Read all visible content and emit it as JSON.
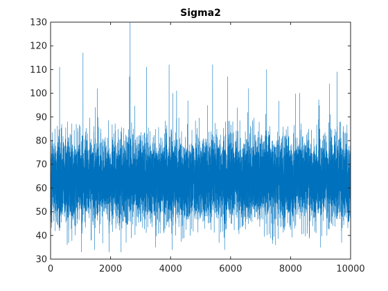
{
  "chart_data": {
    "type": "line",
    "title": "Sigma2",
    "xlabel": "",
    "ylabel": "",
    "xlim": [
      0,
      10000
    ],
    "ylim": [
      30,
      130
    ],
    "x_ticks": [
      0,
      2000,
      4000,
      6000,
      8000,
      10000
    ],
    "y_ticks": [
      30,
      40,
      50,
      60,
      70,
      80,
      90,
      100,
      110,
      120,
      130
    ],
    "x_tick_labels": [
      "0",
      "2000",
      "4000",
      "6000",
      "8000",
      "10000"
    ],
    "y_tick_labels": [
      "30",
      "40",
      "50",
      "60",
      "70",
      "80",
      "90",
      "100",
      "110",
      "120",
      "130"
    ],
    "grid": false,
    "series": [
      {
        "color": "#0072bd",
        "n_points": 10000,
        "typical_range": [
          45,
          80
        ],
        "median": 62,
        "peaks": [
          {
            "x": 2650,
            "y": 130
          },
          {
            "x": 1080,
            "y": 117
          },
          {
            "x": 300,
            "y": 111
          },
          {
            "x": 3200,
            "y": 111
          },
          {
            "x": 3950,
            "y": 112
          },
          {
            "x": 5400,
            "y": 112
          },
          {
            "x": 7200,
            "y": 110
          },
          {
            "x": 9550,
            "y": 109
          },
          {
            "x": 5900,
            "y": 107
          },
          {
            "x": 2630,
            "y": 107
          },
          {
            "x": 1560,
            "y": 102
          },
          {
            "x": 9300,
            "y": 104
          },
          {
            "x": 4200,
            "y": 101
          },
          {
            "x": 6600,
            "y": 102
          },
          {
            "x": 8300,
            "y": 100
          }
        ],
        "troughs": [
          {
            "x": 1030,
            "y": 33
          },
          {
            "x": 1950,
            "y": 33
          },
          {
            "x": 2350,
            "y": 33
          },
          {
            "x": 5800,
            "y": 34
          },
          {
            "x": 9000,
            "y": 35
          },
          {
            "x": 3500,
            "y": 35
          },
          {
            "x": 600,
            "y": 37
          },
          {
            "x": 7500,
            "y": 36
          },
          {
            "x": 9700,
            "y": 37
          }
        ]
      }
    ]
  }
}
